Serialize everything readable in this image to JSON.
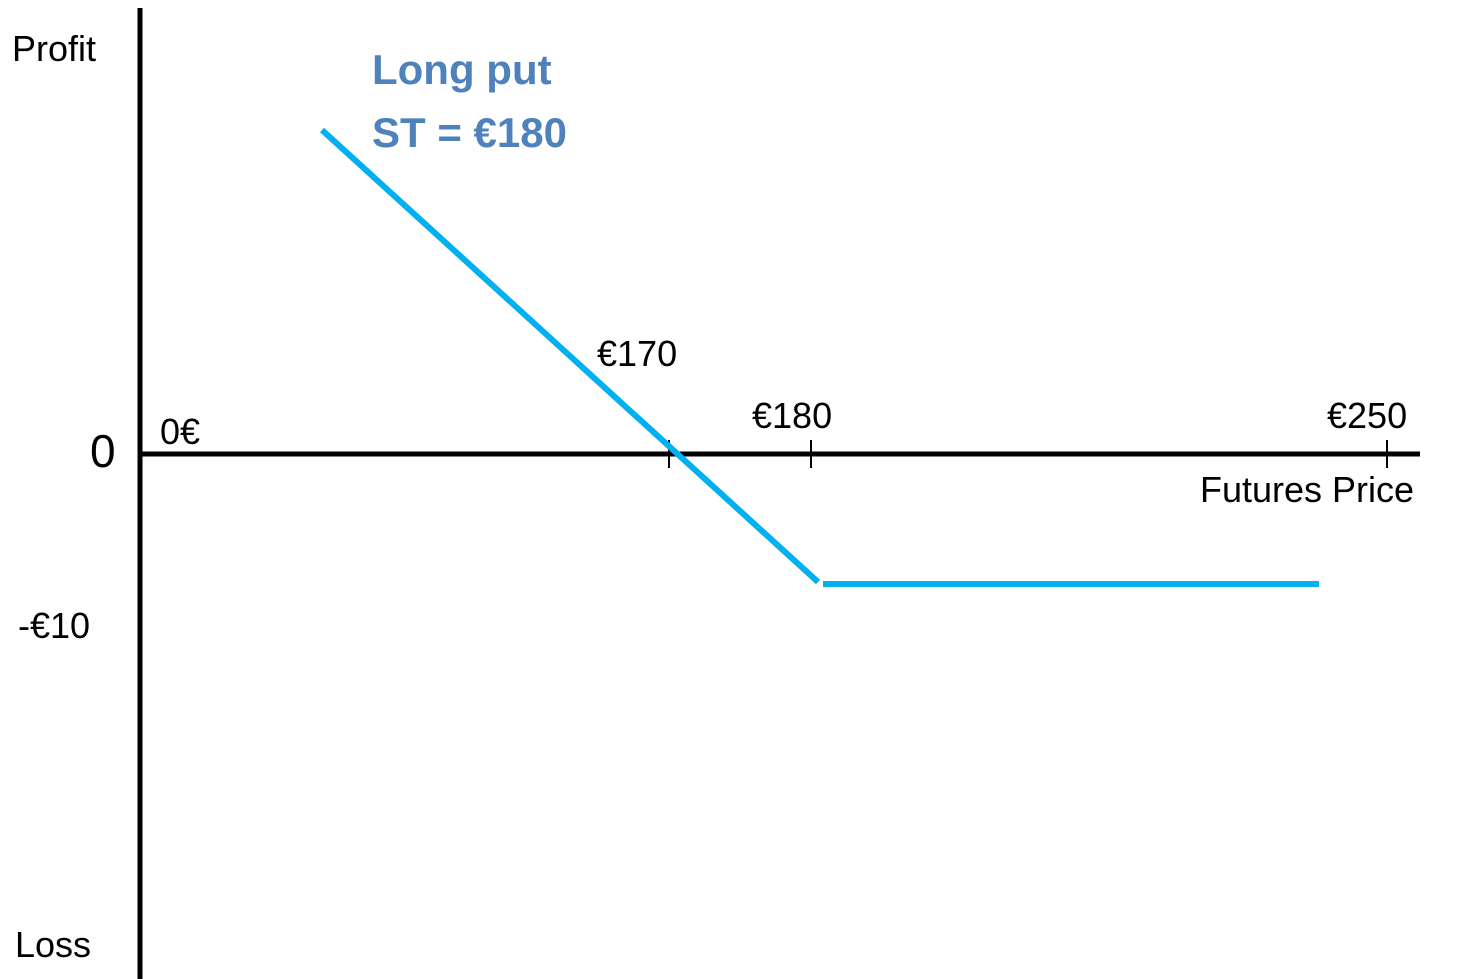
{
  "title": [
    "Long put",
    "ST = €180"
  ],
  "axes": {
    "y_top": "Profit",
    "y_bottom": "Loss",
    "origin": "0",
    "x_label": "Futures Price"
  },
  "labels": {
    "zero_x": "0€",
    "breakeven": "€170",
    "strike": "€180",
    "upper": "€250",
    "premium": "-€10"
  }
}
